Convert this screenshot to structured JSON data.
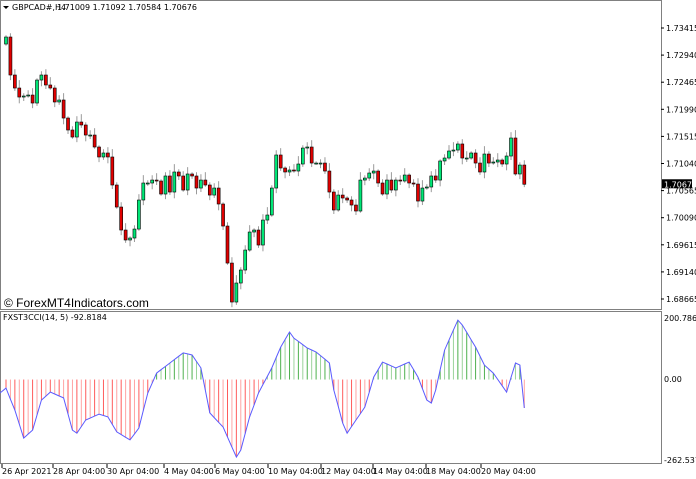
{
  "header": {
    "symbol": "GBPCAD#,H4",
    "ohlc": "1.71009 1.71092 1.70584 1.70676"
  },
  "watermark": "© ForexMT4Indicators.com",
  "indicator": {
    "label": "FXST3CCI(14, 5) -92.8184",
    "axis_max_label": "200.786",
    "axis_zero_label": "0.00",
    "axis_min_label": "-262.5375"
  },
  "colors": {
    "bull": "#00e676",
    "bear": "#e00000",
    "wick": "#9a9a9a",
    "cci_line": "#5a5aff",
    "hist_pos": "#3aa83a",
    "hist_neg": "#ff4a4a"
  },
  "chart_data": [
    {
      "type": "candlestick",
      "title": "GBPCAD#,H4",
      "y_ticks": [
        "1.73415",
        "1.72940",
        "1.72465",
        "1.71990",
        "1.71515",
        "1.71040",
        "1.70565",
        "1.70090",
        "1.69615",
        "1.69140",
        "1.68665"
      ],
      "ylim": [
        1.68665,
        1.73415
      ],
      "current_price": "1.70676",
      "x_ticks": [
        "26 Apr 2021",
        "28 Apr 04:00",
        "30 Apr 04:00",
        "4 May 04:00",
        "6 May 04:00",
        "10 May 04:00",
        "12 May 04:00",
        "14 May 04:00",
        "18 May 04:00",
        "20 May 04:00"
      ],
      "first_open": 1.73134,
      "close": [
        1.73257,
        1.72591,
        1.72363,
        1.72205,
        1.72223,
        1.7224,
        1.721,
        1.72503,
        1.72591,
        1.72416,
        1.72363,
        1.72118,
        1.72153,
        1.71837,
        1.71627,
        1.71504,
        1.71767,
        1.71715,
        1.71539,
        1.71539,
        1.71329,
        1.71154,
        1.71224,
        1.71154,
        1.70663,
        1.70277,
        1.69874,
        1.69699,
        1.69734,
        1.69891,
        1.704,
        1.70698,
        1.70698,
        1.7075,
        1.70733,
        1.70505,
        1.70821,
        1.7054,
        1.70891,
        1.70821,
        1.70575,
        1.70856,
        1.70821,
        1.7061,
        1.7075,
        1.70663,
        1.70487,
        1.7061,
        1.7033,
        1.69944,
        1.69295,
        1.68612,
        1.68945,
        1.69173,
        1.69523,
        1.69839,
        1.69874,
        1.69611,
        1.70049,
        1.70137,
        1.7061,
        1.71189,
        1.70961,
        1.70891,
        1.70926,
        1.70908,
        1.71031,
        1.71311,
        1.71329,
        1.71048,
        1.71048,
        1.71048,
        1.70908,
        1.7054,
        1.70225,
        1.70487,
        1.70435,
        1.704,
        1.70312,
        1.70207,
        1.7075,
        1.70785,
        1.70873,
        1.70908,
        1.70698,
        1.70505,
        1.7075,
        1.70575,
        1.7075,
        1.70733,
        1.70838,
        1.70698,
        1.7068,
        1.70382,
        1.7061,
        1.70628,
        1.70821,
        1.7075,
        1.71084,
        1.71136,
        1.71259,
        1.71276,
        1.71382,
        1.71136,
        1.71136,
        1.71224,
        1.71048,
        1.70891,
        1.71206,
        1.71048,
        1.71066,
        1.71101,
        1.71031,
        1.71171,
        1.71487,
        1.70856,
        1.71013,
        1.70676
      ]
    },
    {
      "type": "line+histogram",
      "title": "FXST3CCI(14, 5)",
      "ylim": [
        -262.5375,
        200.786
      ],
      "y_ticks": [
        "200.786",
        "0.00",
        "-262.5375"
      ],
      "keypoints_bar_value": [
        [
          0,
          -28
        ],
        [
          2,
          -100
        ],
        [
          4,
          -191
        ],
        [
          6,
          -165
        ],
        [
          8,
          -67
        ],
        [
          10,
          -41
        ],
        [
          13,
          -60
        ],
        [
          15,
          -165
        ],
        [
          16,
          -175
        ],
        [
          18,
          -132
        ],
        [
          21,
          -113
        ],
        [
          23,
          -122
        ],
        [
          25,
          -171
        ],
        [
          28,
          -197
        ],
        [
          30,
          -158
        ],
        [
          32,
          -44
        ],
        [
          34,
          21
        ],
        [
          37,
          54
        ],
        [
          40,
          87
        ],
        [
          42,
          80
        ],
        [
          44,
          38
        ],
        [
          45,
          -34
        ],
        [
          46,
          -109
        ],
        [
          49,
          -155
        ],
        [
          52,
          -253
        ],
        [
          53,
          -230
        ],
        [
          55,
          -122
        ],
        [
          57,
          -44
        ],
        [
          60,
          38
        ],
        [
          62,
          106
        ],
        [
          64,
          155
        ],
        [
          65,
          135
        ],
        [
          68,
          103
        ],
        [
          70,
          90
        ],
        [
          73,
          54
        ],
        [
          74,
          -34
        ],
        [
          76,
          -142
        ],
        [
          77,
          -175
        ],
        [
          79,
          -132
        ],
        [
          81,
          -90
        ],
        [
          83,
          8
        ],
        [
          85,
          57
        ],
        [
          88,
          38
        ],
        [
          91,
          57
        ],
        [
          93,
          8
        ],
        [
          95,
          -67
        ],
        [
          96,
          -77
        ],
        [
          97,
          -34
        ],
        [
          99,
          96
        ],
        [
          102,
          194
        ],
        [
          103,
          178
        ],
        [
          106,
          106
        ],
        [
          108,
          47
        ],
        [
          110,
          21
        ],
        [
          113,
          -41
        ],
        [
          115,
          54
        ],
        [
          116,
          47
        ],
        [
          117,
          -92.8184
        ]
      ]
    }
  ]
}
